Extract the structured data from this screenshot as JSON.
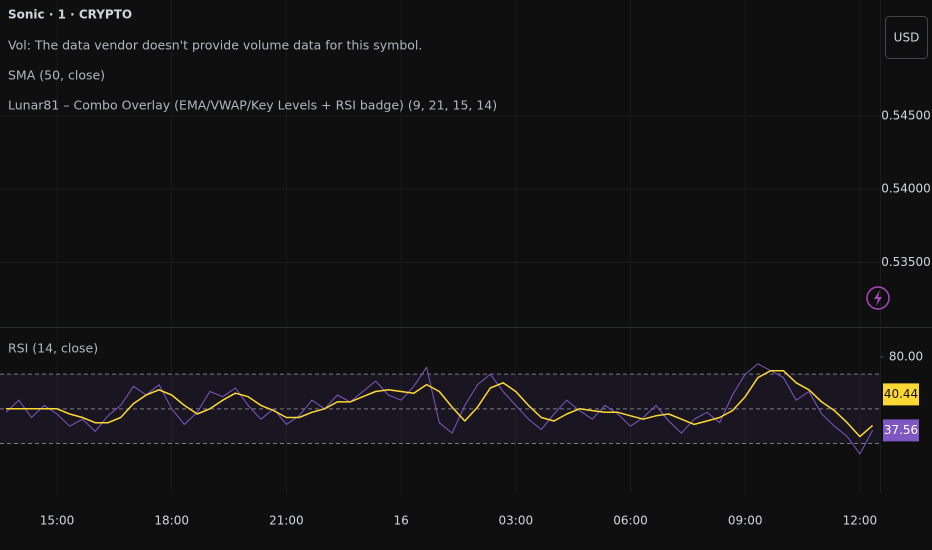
{
  "chart_data": [
    {
      "type": "line",
      "title": "Sonic · 1 · CRYPTO",
      "annotations": [
        "Vol: The data vendor doesn't provide volume data for this symbol.",
        "SMA (50, close)",
        "Lunar81 – Combo Overlay (EMA/VWAP/Key Levels + RSI badge) (9, 21, 15, 14)"
      ],
      "currency": "USD",
      "ylim": [
        0.5306,
        0.5529
      ],
      "yticks": [
        {
          "value": 0.545,
          "label": "0.54500"
        },
        {
          "value": 0.54,
          "label": "0.54000"
        },
        {
          "value": 0.535,
          "label": "0.53500"
        }
      ],
      "grid": true
    },
    {
      "type": "line",
      "title": "RSI (14, close)",
      "categories": [
        null,
        null,
        null,
        null,
        "15:00",
        null,
        null,
        null,
        null,
        null,
        null,
        null,
        null,
        "18:00",
        null,
        null,
        null,
        null,
        null,
        null,
        null,
        null,
        "21:00",
        null,
        null,
        null,
        null,
        null,
        null,
        null,
        null,
        "16",
        null,
        null,
        null,
        null,
        null,
        null,
        null,
        null,
        "03:00",
        null,
        null,
        null,
        null,
        null,
        null,
        null,
        null,
        "06:00",
        null,
        null,
        null,
        null,
        null,
        null,
        null,
        null,
        "09:00",
        null,
        null,
        null,
        null,
        null,
        null,
        null,
        null,
        "12:00",
        null
      ],
      "series": [
        {
          "color": "#7e57c2",
          "values": [
            48,
            55,
            45,
            52,
            47,
            40,
            44,
            37,
            46,
            52,
            63,
            58,
            64,
            50,
            41,
            48,
            60,
            57,
            62,
            52,
            44,
            50,
            41,
            46,
            55,
            50,
            58,
            54,
            60,
            66,
            58,
            55,
            63,
            74,
            42,
            36,
            52,
            64,
            70,
            60,
            52,
            44,
            38,
            47,
            55,
            49,
            44,
            52,
            47,
            40,
            45,
            52,
            43,
            36,
            44,
            48,
            42,
            58,
            70,
            76,
            72,
            68,
            55,
            60,
            47,
            40,
            34,
            24,
            37.56
          ],
          "value_labels": [
            null,
            null,
            null,
            null,
            null,
            null,
            null,
            null,
            null,
            null,
            null,
            null,
            null,
            null,
            null,
            null,
            null,
            null,
            null,
            null,
            null,
            null,
            null,
            null,
            null,
            null,
            null,
            null,
            null,
            null,
            null,
            null,
            null,
            null,
            null,
            null,
            null,
            null,
            null,
            null,
            null,
            null,
            null,
            null,
            null,
            null,
            null,
            null,
            null,
            null,
            null,
            null,
            null,
            null,
            null,
            null,
            null,
            null,
            null,
            null,
            null,
            null,
            null,
            null,
            null,
            null,
            null,
            null,
            "37.56"
          ]
        },
        {
          "color": "#fdd835",
          "values": [
            50,
            50,
            50,
            50,
            50,
            47,
            45,
            42,
            42,
            45,
            53,
            58,
            61,
            58,
            52,
            47,
            50,
            55,
            59,
            57,
            52,
            49,
            45,
            45,
            48,
            50,
            54,
            54,
            57,
            60,
            61,
            60,
            59,
            64,
            60,
            51,
            43,
            51,
            62,
            65,
            60,
            52,
            45,
            43,
            47,
            50,
            49,
            48,
            48,
            46,
            44,
            46,
            47,
            44,
            41,
            43,
            45,
            49,
            57,
            68,
            72,
            72,
            65,
            61,
            54,
            49,
            42,
            34,
            40.44
          ],
          "value_labels": [
            null,
            null,
            null,
            null,
            null,
            null,
            null,
            null,
            null,
            null,
            null,
            null,
            null,
            null,
            null,
            null,
            null,
            null,
            null,
            null,
            null,
            null,
            null,
            null,
            null,
            null,
            null,
            null,
            null,
            null,
            null,
            null,
            null,
            null,
            null,
            null,
            null,
            null,
            null,
            null,
            null,
            null,
            null,
            null,
            null,
            null,
            null,
            null,
            null,
            null,
            null,
            null,
            null,
            null,
            null,
            null,
            null,
            null,
            null,
            null,
            null,
            null,
            null,
            null,
            null,
            null,
            null,
            null,
            "40.44"
          ]
        }
      ],
      "ylim": [
        2,
        95.5
      ],
      "yticks": [
        {
          "value": 80,
          "label": "80.00"
        }
      ],
      "levels": [
        70,
        50,
        30
      ],
      "grid": true
    }
  ]
}
